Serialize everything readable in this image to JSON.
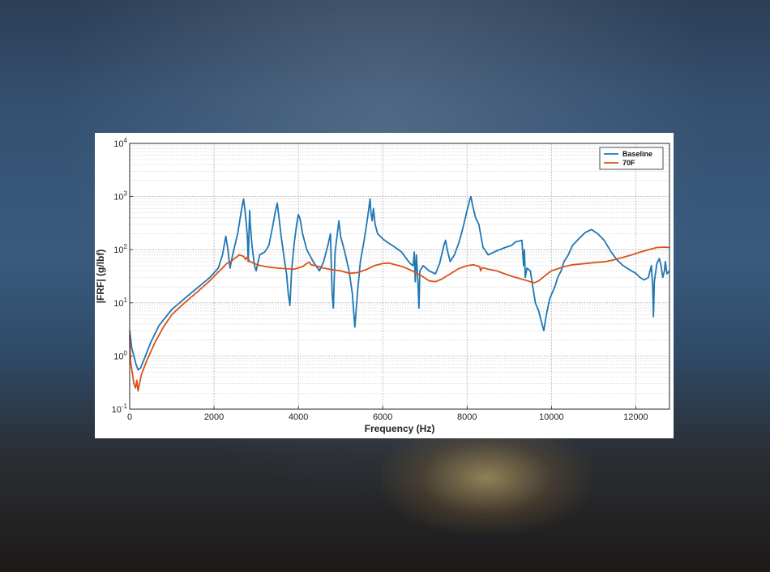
{
  "chart_data": {
    "type": "line",
    "title": "",
    "xlabel": "Frequency (Hz)",
    "ylabel": "|FRF| (g/lbf)",
    "xlim": [
      0,
      12800
    ],
    "ylim": [
      0.1,
      10000
    ],
    "y_scale": "log",
    "grid": true,
    "legend_position": "top-right",
    "x_ticks": [
      "0",
      "2000",
      "4000",
      "6000",
      "8000",
      "10000",
      "12000"
    ],
    "y_ticks": [
      {
        "base": "10",
        "exp": "-1"
      },
      {
        "base": "10",
        "exp": "0"
      },
      {
        "base": "10",
        "exp": "1"
      },
      {
        "base": "10",
        "exp": "2"
      },
      {
        "base": "10",
        "exp": "3"
      },
      {
        "base": "10",
        "exp": "4"
      }
    ],
    "series": [
      {
        "name": "Baseline",
        "color": "#1f77b4",
        "points": [
          [
            0,
            3.0
          ],
          [
            50,
            1.4
          ],
          [
            100,
            1.0
          ],
          [
            150,
            0.7
          ],
          [
            200,
            0.55
          ],
          [
            260,
            0.6
          ],
          [
            350,
            0.9
          ],
          [
            500,
            1.8
          ],
          [
            700,
            3.8
          ],
          [
            1000,
            7.5
          ],
          [
            1300,
            12
          ],
          [
            1600,
            19
          ],
          [
            1900,
            30
          ],
          [
            2100,
            45
          ],
          [
            2200,
            80
          ],
          [
            2280,
            180
          ],
          [
            2330,
            100
          ],
          [
            2380,
            45
          ],
          [
            2440,
            80
          ],
          [
            2560,
            200
          ],
          [
            2640,
            500
          ],
          [
            2700,
            900
          ],
          [
            2740,
            500
          ],
          [
            2790,
            180
          ],
          [
            2810,
            60
          ],
          [
            2830,
            200
          ],
          [
            2845,
            550
          ],
          [
            2860,
            300
          ],
          [
            2900,
            120
          ],
          [
            2960,
            50
          ],
          [
            3000,
            40
          ],
          [
            3080,
            80
          ],
          [
            3200,
            90
          ],
          [
            3300,
            120
          ],
          [
            3400,
            300
          ],
          [
            3450,
            500
          ],
          [
            3500,
            750
          ],
          [
            3540,
            400
          ],
          [
            3600,
            160
          ],
          [
            3680,
            55
          ],
          [
            3720,
            35
          ],
          [
            3760,
            15
          ],
          [
            3800,
            9
          ],
          [
            3840,
            40
          ],
          [
            3900,
            130
          ],
          [
            3960,
            300
          ],
          [
            4000,
            460
          ],
          [
            4040,
            380
          ],
          [
            4100,
            200
          ],
          [
            4200,
            100
          ],
          [
            4350,
            60
          ],
          [
            4500,
            40
          ],
          [
            4600,
            60
          ],
          [
            4700,
            120
          ],
          [
            4760,
            200
          ],
          [
            4800,
            15
          ],
          [
            4830,
            8
          ],
          [
            4870,
            90
          ],
          [
            4960,
            350
          ],
          [
            5000,
            180
          ],
          [
            5100,
            90
          ],
          [
            5200,
            40
          ],
          [
            5280,
            15
          ],
          [
            5340,
            3.5
          ],
          [
            5400,
            15
          ],
          [
            5470,
            60
          ],
          [
            5560,
            150
          ],
          [
            5640,
            400
          ],
          [
            5700,
            900
          ],
          [
            5720,
            500
          ],
          [
            5750,
            350
          ],
          [
            5780,
            600
          ],
          [
            5820,
            300
          ],
          [
            5880,
            200
          ],
          [
            6000,
            160
          ],
          [
            6100,
            140
          ],
          [
            6300,
            110
          ],
          [
            6450,
            90
          ],
          [
            6550,
            70
          ],
          [
            6650,
            55
          ],
          [
            6720,
            50
          ],
          [
            6750,
            90
          ],
          [
            6770,
            25
          ],
          [
            6800,
            80
          ],
          [
            6840,
            20
          ],
          [
            6860,
            8
          ],
          [
            6880,
            40
          ],
          [
            6960,
            50
          ],
          [
            7100,
            40
          ],
          [
            7250,
            35
          ],
          [
            7350,
            55
          ],
          [
            7450,
            120
          ],
          [
            7490,
            150
          ],
          [
            7530,
            100
          ],
          [
            7600,
            60
          ],
          [
            7700,
            80
          ],
          [
            7800,
            130
          ],
          [
            7900,
            250
          ],
          [
            8000,
            550
          ],
          [
            8060,
            850
          ],
          [
            8090,
            1000
          ],
          [
            8130,
            700
          ],
          [
            8200,
            400
          ],
          [
            8280,
            300
          ],
          [
            8330,
            180
          ],
          [
            8380,
            110
          ],
          [
            8420,
            100
          ],
          [
            8500,
            80
          ],
          [
            8700,
            95
          ],
          [
            8900,
            110
          ],
          [
            9050,
            120
          ],
          [
            9150,
            140
          ],
          [
            9300,
            150
          ],
          [
            9340,
            50
          ],
          [
            9360,
            100
          ],
          [
            9380,
            30
          ],
          [
            9420,
            45
          ],
          [
            9500,
            40
          ],
          [
            9560,
            20
          ],
          [
            9620,
            10
          ],
          [
            9700,
            7
          ],
          [
            9760,
            4.5
          ],
          [
            9820,
            3.0
          ],
          [
            9880,
            6
          ],
          [
            9960,
            12
          ],
          [
            10080,
            20
          ],
          [
            10150,
            30
          ],
          [
            10230,
            40
          ],
          [
            10300,
            60
          ],
          [
            10400,
            80
          ],
          [
            10500,
            120
          ],
          [
            10650,
            160
          ],
          [
            10800,
            210
          ],
          [
            10950,
            240
          ],
          [
            11100,
            200
          ],
          [
            11250,
            150
          ],
          [
            11400,
            95
          ],
          [
            11550,
            65
          ],
          [
            11700,
            50
          ],
          [
            11850,
            42
          ],
          [
            12000,
            36
          ],
          [
            12100,
            30
          ],
          [
            12200,
            27
          ],
          [
            12300,
            30
          ],
          [
            12370,
            50
          ],
          [
            12400,
            22
          ],
          [
            12420,
            5.5
          ],
          [
            12440,
            25
          ],
          [
            12500,
            55
          ],
          [
            12560,
            68
          ],
          [
            12600,
            50
          ],
          [
            12640,
            30
          ],
          [
            12680,
            40
          ],
          [
            12700,
            60
          ],
          [
            12740,
            35
          ],
          [
            12800,
            40
          ]
        ]
      },
      {
        "name": "70F",
        "color": "#d95319",
        "points": [
          [
            0,
            2.5
          ],
          [
            20,
            0.8
          ],
          [
            60,
            0.5
          ],
          [
            100,
            0.3
          ],
          [
            140,
            0.25
          ],
          [
            170,
            0.35
          ],
          [
            200,
            0.22
          ],
          [
            230,
            0.3
          ],
          [
            280,
            0.45
          ],
          [
            400,
            0.8
          ],
          [
            600,
            1.8
          ],
          [
            800,
            3.5
          ],
          [
            1000,
            6
          ],
          [
            1300,
            10
          ],
          [
            1600,
            16
          ],
          [
            1900,
            26
          ],
          [
            2100,
            38
          ],
          [
            2200,
            45
          ],
          [
            2300,
            55
          ],
          [
            2400,
            60
          ],
          [
            2500,
            70
          ],
          [
            2600,
            80
          ],
          [
            2700,
            75
          ],
          [
            2750,
            65
          ],
          [
            2780,
            72
          ],
          [
            2850,
            60
          ],
          [
            2950,
            55
          ],
          [
            3100,
            50
          ],
          [
            3300,
            47
          ],
          [
            3500,
            45
          ],
          [
            3700,
            44
          ],
          [
            3900,
            43
          ],
          [
            4100,
            48
          ],
          [
            4200,
            55
          ],
          [
            4260,
            58
          ],
          [
            4300,
            52
          ],
          [
            4400,
            50
          ],
          [
            4600,
            45
          ],
          [
            4800,
            42
          ],
          [
            5000,
            40
          ],
          [
            5200,
            36
          ],
          [
            5400,
            37
          ],
          [
            5600,
            42
          ],
          [
            5800,
            50
          ],
          [
            6000,
            55
          ],
          [
            6150,
            56
          ],
          [
            6300,
            52
          ],
          [
            6500,
            47
          ],
          [
            6700,
            40
          ],
          [
            6900,
            33
          ],
          [
            7100,
            26
          ],
          [
            7250,
            25
          ],
          [
            7400,
            28
          ],
          [
            7600,
            35
          ],
          [
            7800,
            44
          ],
          [
            8000,
            50
          ],
          [
            8150,
            52
          ],
          [
            8300,
            48
          ],
          [
            8320,
            40
          ],
          [
            8360,
            46
          ],
          [
            8500,
            43
          ],
          [
            8700,
            40
          ],
          [
            8900,
            35
          ],
          [
            9100,
            31
          ],
          [
            9300,
            28
          ],
          [
            9500,
            25
          ],
          [
            9600,
            24
          ],
          [
            9700,
            26
          ],
          [
            9800,
            30
          ],
          [
            9900,
            35
          ],
          [
            10000,
            40
          ],
          [
            10200,
            45
          ],
          [
            10300,
            48
          ],
          [
            10500,
            52
          ],
          [
            10700,
            54
          ],
          [
            10900,
            56
          ],
          [
            11100,
            58
          ],
          [
            11300,
            60
          ],
          [
            11500,
            65
          ],
          [
            11700,
            72
          ],
          [
            11900,
            80
          ],
          [
            12100,
            90
          ],
          [
            12300,
            100
          ],
          [
            12500,
            110
          ],
          [
            12700,
            112
          ],
          [
            12800,
            110
          ]
        ]
      }
    ]
  }
}
